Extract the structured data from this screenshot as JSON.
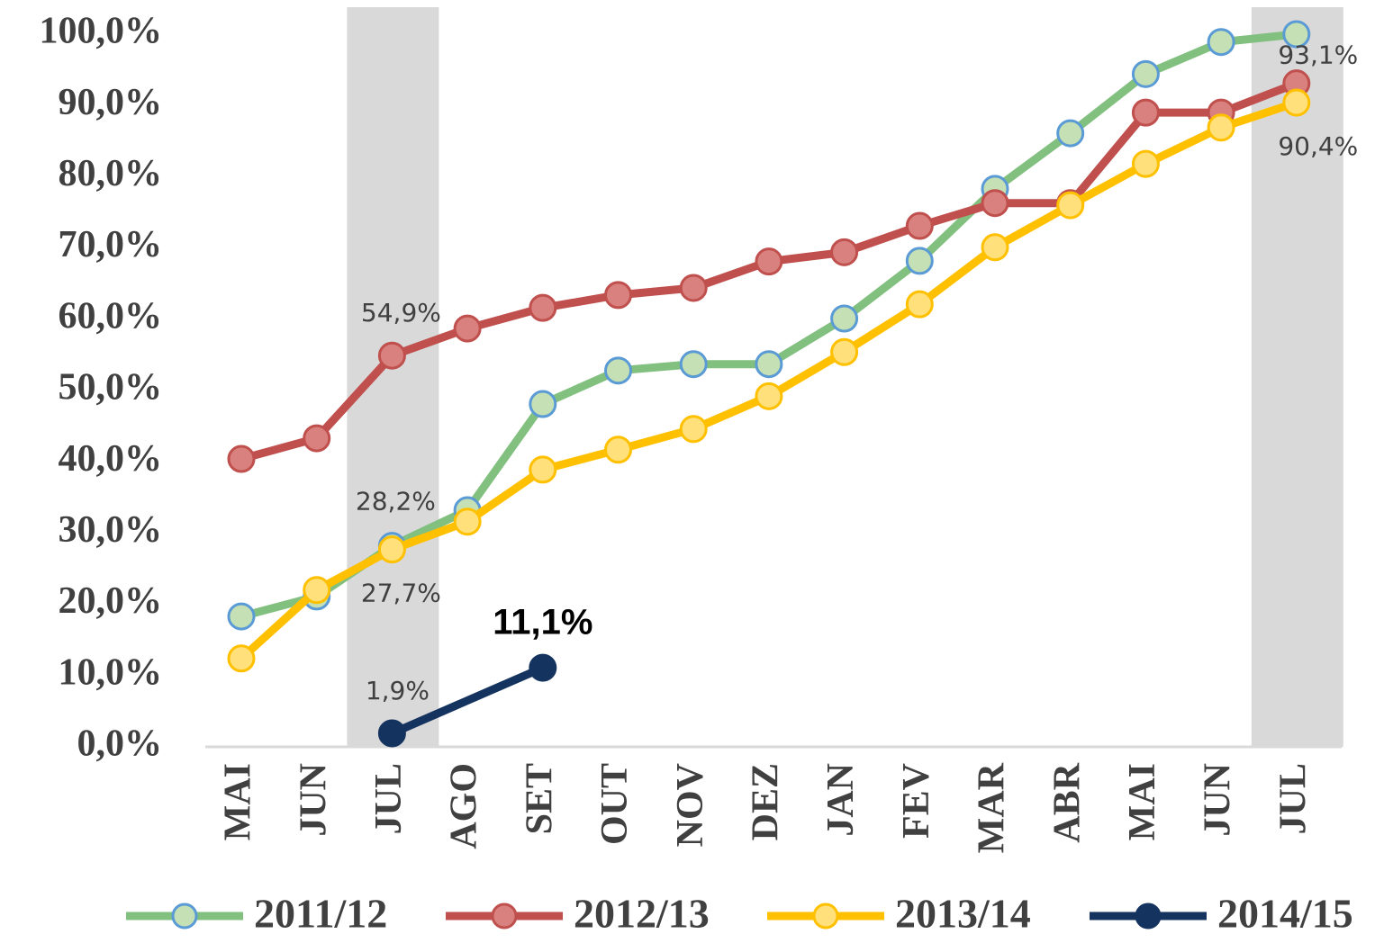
{
  "chart_data": {
    "type": "line",
    "categories": [
      "MAI",
      "JUN",
      "JUL",
      "AGO",
      "SET",
      "OUT",
      "NOV",
      "DEZ",
      "JAN",
      "FEV",
      "MAR",
      "ABR",
      "MAI",
      "JUN",
      "JUL"
    ],
    "ylim": [
      0,
      100
    ],
    "yticks": [
      {
        "value": 0,
        "label": "0,0%"
      },
      {
        "value": 10,
        "label": "10,0%"
      },
      {
        "value": 20,
        "label": "20,0%"
      },
      {
        "value": 30,
        "label": "30,0%"
      },
      {
        "value": 40,
        "label": "40,0%"
      },
      {
        "value": 50,
        "label": "50,0%"
      },
      {
        "value": 60,
        "label": "60,0%"
      },
      {
        "value": 70,
        "label": "70,0%"
      },
      {
        "value": 80,
        "label": "80,0%"
      },
      {
        "value": 90,
        "label": "90,0%"
      },
      {
        "value": 100,
        "label": "100,0%"
      }
    ],
    "highlight_categories": [
      2,
      14
    ],
    "span_gaps": true,
    "series": [
      {
        "name": "2011/12",
        "color": "#82c07f",
        "marker_fill": "#c5e0b4",
        "marker_stroke": "#5b9bd5",
        "values": [
          18.3,
          21.1,
          28.2,
          33.2,
          48.1,
          52.8,
          53.7,
          53.7,
          60.1,
          68.2,
          78.3,
          86.1,
          94.4,
          98.9,
          100
        ],
        "value_labels": [
          null,
          null,
          "28,2%",
          null,
          null,
          null,
          null,
          null,
          null,
          null,
          null,
          null,
          null,
          null,
          null
        ]
      },
      {
        "name": "2012/13",
        "color": "#c0504d",
        "marker_fill": "#d9817e",
        "marker_stroke": "#c0504d",
        "values": [
          40.4,
          43.3,
          54.9,
          58.7,
          61.6,
          63.4,
          64.4,
          68.1,
          69.4,
          73.1,
          76.3,
          76.3,
          89.0,
          89.0,
          93.1
        ],
        "value_labels": [
          null,
          null,
          "54,9%",
          null,
          null,
          null,
          null,
          null,
          null,
          null,
          null,
          null,
          null,
          null,
          "93,1%"
        ]
      },
      {
        "name": "2013/14",
        "color": "#ffc000",
        "marker_fill": "#ffe07a",
        "marker_stroke": "#ffc000",
        "values": [
          12.4,
          22.0,
          27.7,
          31.6,
          38.9,
          41.7,
          44.6,
          49.2,
          55.4,
          62.1,
          70.1,
          76.0,
          81.8,
          86.9,
          90.4
        ],
        "value_labels": [
          null,
          null,
          "27,7%",
          null,
          null,
          null,
          null,
          null,
          null,
          null,
          null,
          null,
          null,
          null,
          "90,4%"
        ]
      },
      {
        "name": "2014/15",
        "color": "#14335e",
        "marker_fill": "#14335e",
        "marker_stroke": "#14335e",
        "values": [
          null,
          null,
          1.9,
          null,
          11.1,
          null,
          null,
          null,
          null,
          null,
          null,
          null,
          null,
          null,
          null
        ],
        "value_labels": [
          null,
          null,
          "1,9%",
          null,
          "11,1%",
          null,
          null,
          null,
          null,
          null,
          null,
          null,
          null,
          null,
          null
        ]
      }
    ]
  }
}
